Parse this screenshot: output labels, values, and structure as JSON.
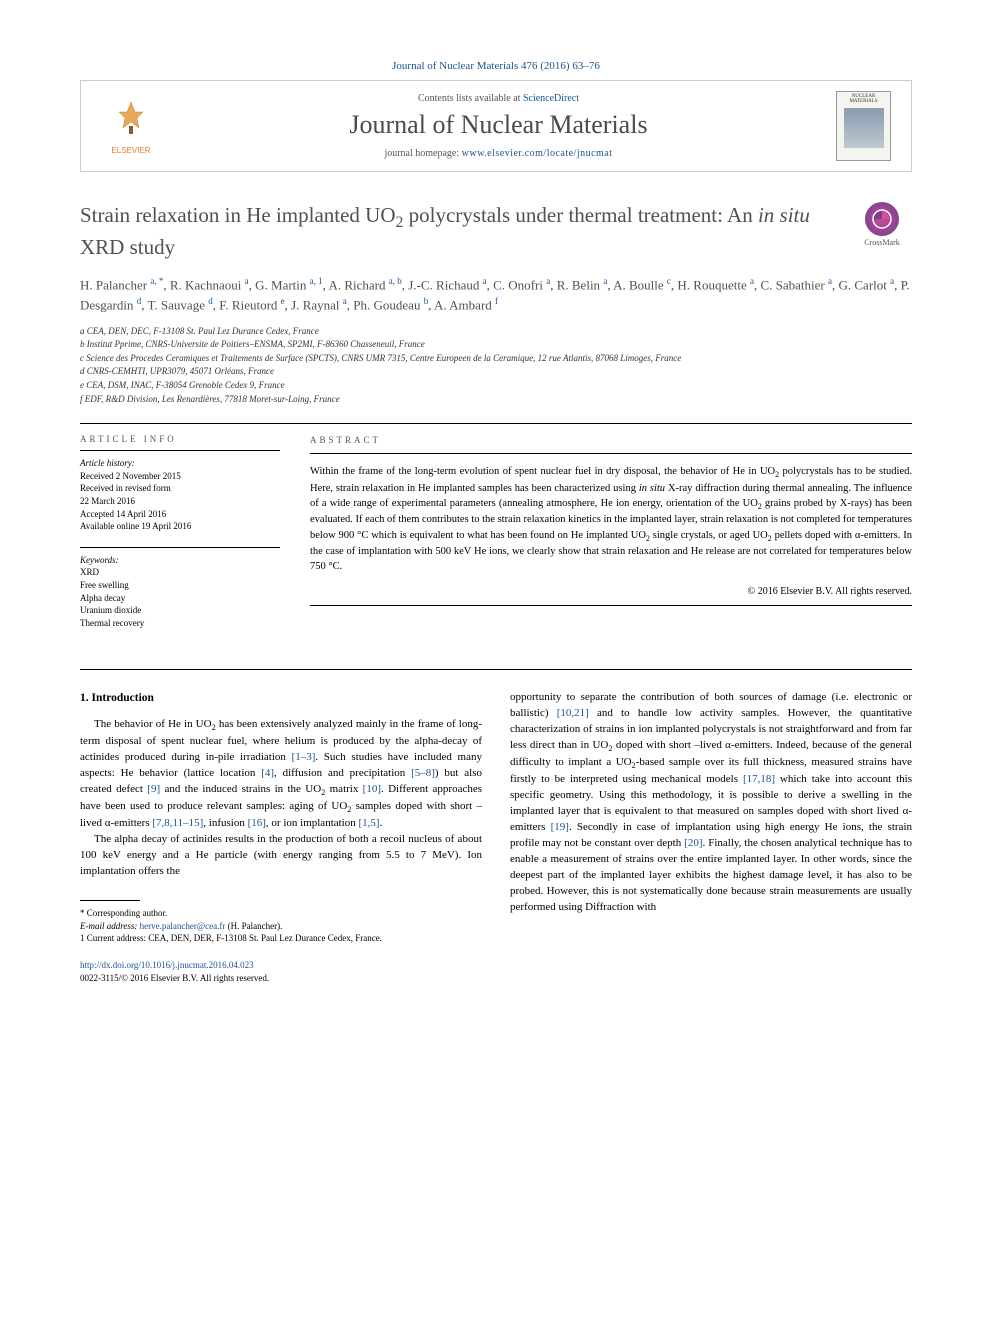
{
  "journal_ref": "Journal of Nuclear Materials 476 (2016) 63–76",
  "header": {
    "contents_prefix": "Contents lists available at ",
    "contents_link": "ScienceDirect",
    "journal_title": "Journal of Nuclear Materials",
    "homepage_prefix": "journal homepage: ",
    "homepage_url": "www.elsevier.com/locate/jnucmat",
    "elsevier": "ELSEVIER",
    "cover_title": "NUCLEAR MATERIALS"
  },
  "crossmark": "CrossMark",
  "title_html": "Strain relaxation in He implanted UO<sub>2</sub> polycrystals under thermal treatment: An <i>in situ</i> XRD study",
  "authors_html": "H. Palancher <sup>a, *</sup>, R. Kachnaoui <sup>a</sup>, G. Martin <sup>a, 1</sup>, A. Richard <sup>a, b</sup>, J.-C. Richaud <sup>a</sup>, C. Onofri <sup>a</sup>, R. Belin <sup>a</sup>, A. Boulle <sup>c</sup>, H. Rouquette <sup>a</sup>, C. Sabathier <sup>a</sup>, G. Carlot <sup>a</sup>, P. Desgardin <sup>d</sup>, T. Sauvage <sup>d</sup>, F. Rieutord <sup>e</sup>, J. Raynal <sup>a</sup>, Ph. Goudeau <sup>b</sup>, A. Ambard <sup>f</sup>",
  "affiliations": [
    "a CEA, DEN, DEC, F-13108 St. Paul Lez Durance Cedex, France",
    "b Institut Pprime, CNRS-Universite de Poitiers–ENSMA, SP2MI, F-86360 Chasseneuil, France",
    "c Science des Procedes Ceramiques et Traitements de Surface (SPCTS), CNRS UMR 7315, Centre Europeen de la Ceramique, 12 rue Atlantis, 87068 Limoges, France",
    "d CNRS-CEMHTI, UPR3079, 45071 Orléans, France",
    "e CEA, DSM, INAC, F-38054 Grenoble Cedex 9, France",
    "f EDF, R&D Division, Les Renardières, 77818 Moret-sur-Loing, France"
  ],
  "article_info": {
    "head": "ARTICLE INFO",
    "history_label": "Article history:",
    "history": [
      "Received 2 November 2015",
      "Received in revised form",
      "22 March 2016",
      "Accepted 14 April 2016",
      "Available online 19 April 2016"
    ],
    "keywords_label": "Keywords:",
    "keywords": [
      "XRD",
      "Free swelling",
      "Alpha decay",
      "Uranium dioxide",
      "Thermal recovery"
    ]
  },
  "abstract": {
    "head": "ABSTRACT",
    "text_html": "Within the frame of the long-term evolution of spent nuclear fuel in dry disposal, the behavior of He in UO<sub>2</sub> polycrystals has to be studied. Here, strain relaxation in He implanted samples has been characterized using <i>in situ</i> X-ray diffraction during thermal annealing. The influence of a wide range of experimental parameters (annealing atmosphere, He ion energy, orientation of the UO<sub>2</sub> grains probed by X-rays) has been evaluated. If each of them contributes to the strain relaxation kinetics in the implanted layer, strain relaxation is not completed for temperatures below 900 °C which is equivalent to what has been found on He implanted UO<sub>2</sub> single crystals, or aged UO<sub>2</sub> pellets doped with α-emitters. In the case of implantation with 500 keV He ions, we clearly show that strain relaxation and He release are not correlated for temperatures below 750 °C.",
    "copyright": "© 2016 Elsevier B.V. All rights reserved."
  },
  "body": {
    "section_number": "1.",
    "section_title": "Introduction",
    "col1_p1_html": "The behavior of He in UO<sub>2</sub> has been extensively analyzed mainly in the frame of long-term disposal of spent nuclear fuel, where helium is produced by the alpha-decay of actinides produced during in-pile irradiation <span class='ref-link'>[1–3]</span>. Such studies have included many aspects: He behavior (lattice location <span class='ref-link'>[4]</span>, diffusion and precipitation <span class='ref-link'>[5–8]</span>) but also created defect <span class='ref-link'>[9]</span> and the induced strains in the UO<sub>2</sub> matrix <span class='ref-link'>[10]</span>. Different approaches have been used to produce relevant samples: aging of UO<sub>2</sub> samples doped with short –lived α-emitters <span class='ref-link'>[7,8,11–15]</span>, infusion <span class='ref-link'>[16]</span>, or ion implantation <span class='ref-link'>[1,5]</span>.",
    "col1_p2_html": "The alpha decay of actinides results in the production of both a recoil nucleus of about 100 keV energy and a He particle (with energy ranging from 5.5 to 7 MeV). Ion implantation offers the",
    "col2_p1_html": "opportunity to separate the contribution of both sources of damage (i.e. electronic or ballistic) <span class='ref-link'>[10,21]</span> and to handle low activity samples. However, the quantitative characterization of strains in ion implanted polycrystals is not straightforward and from far less direct than in UO<sub>2</sub> doped with short –lived α-emitters. Indeed, because of the general difficulty to implant a UO<sub>2</sub>-based sample over its full thickness, measured strains have firstly to be interpreted using mechanical models <span class='ref-link'>[17,18]</span> which take into account this specific geometry. Using this methodology, it is possible to derive a swelling in the implanted layer that is equivalent to that measured on samples doped with short lived α-emitters <span class='ref-link'>[19]</span>. Secondly in case of implantation using high energy He ions, the strain profile may not be constant over depth <span class='ref-link'>[20]</span>. Finally, the chosen analytical technique has to enable a measurement of strains over the entire implanted layer. In other words, since the deepest part of the implanted layer exhibits the highest damage level, it has also to be probed. However, this is not systematically done because strain measurements are usually performed using Diffraction with"
  },
  "footnotes": {
    "corresponding": "* Corresponding author.",
    "email_label": "E-mail address:",
    "email": "herve.palancher@cea.fr",
    "email_name": "(H. Palancher).",
    "note1": "1  Current address: CEA, DEN, DER, F-13108 St. Paul Lez Durance Cedex, France."
  },
  "footer": {
    "doi": "http://dx.doi.org/10.1016/j.jnucmat.2016.04.023",
    "issn_line": "0022-3115/© 2016 Elsevier B.V. All rights reserved."
  },
  "colors": {
    "link": "#1a5490",
    "elsevier": "#e67d28",
    "title_gray": "#505050"
  }
}
